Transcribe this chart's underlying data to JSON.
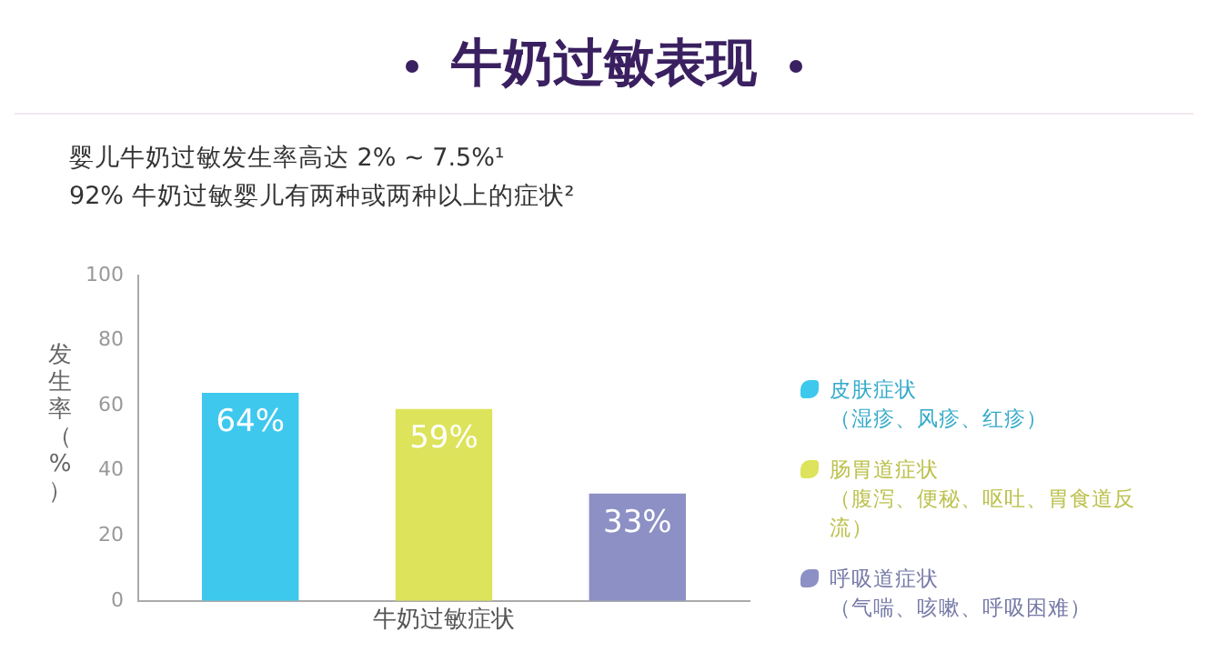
{
  "chart_data": {
    "type": "bar",
    "title": "牛奶过敏表现",
    "subtitle": "婴儿牛奶过敏发生率高达 2% ~ 7.5%¹",
    "annotations": [
      "92% 牛奶过敏婴儿有两种或两种以上的症状²"
    ],
    "ylabel": "发生率（%）",
    "categories": [
      "牛奶过敏症状"
    ],
    "series": [
      {
        "name": "皮肤症状（湿疹、风疹、红疹）",
        "color": "#3ec8ee",
        "values": [
          64
        ],
        "value_labels": [
          "64%"
        ]
      },
      {
        "name": "肠胃道症状（腹泻、便秘、呕吐、胃食道反流）",
        "color": "#dde35a",
        "values": [
          59
        ],
        "value_labels": [
          "59%"
        ]
      },
      {
        "name": "呼吸道症状（气喘、咳嗽、呼吸困难）",
        "color": "#8c90c4",
        "values": [
          33
        ],
        "value_labels": [
          "33%"
        ]
      }
    ],
    "ylim": [
      0,
      100
    ],
    "yticks": [
      0,
      20,
      40,
      60,
      80,
      100
    ],
    "grid": false,
    "legend": "right"
  }
}
